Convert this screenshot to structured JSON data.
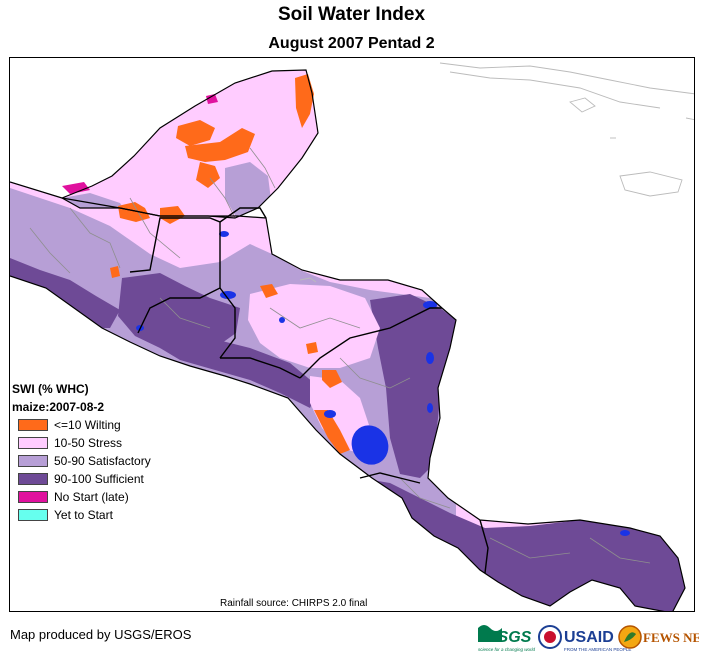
{
  "header": {
    "title": "Soil Water Index",
    "subtitle": "August 2007 Pentad 2"
  },
  "legend": {
    "title": "SWI (% WHC)",
    "subtitle": "maize:2007-08-2",
    "items": [
      {
        "label": "<=10 Wilting",
        "color": "#ff6a1a"
      },
      {
        "label": "10-50 Stress",
        "color": "#ffccff"
      },
      {
        "label": "50-90 Satisfactory",
        "color": "#b79fd6"
      },
      {
        "label": "90-100 Sufficient",
        "color": "#6e4a96"
      },
      {
        "label": "No Start (late)",
        "color": "#e0119e"
      },
      {
        "label": "Yet to Start",
        "color": "#66ffee"
      }
    ]
  },
  "map": {
    "water_color": "#1a33e6",
    "border_color": "#000000",
    "admin_color": "#8f8f8f"
  },
  "footer": {
    "rain_source": "Rainfall source: CHIRPS 2.0 final",
    "credit": "Map produced by USGS/EROS"
  },
  "logos": {
    "usgs": "USGS",
    "usgs_tagline": "science for a changing world",
    "usaid": "USAID",
    "usaid_tagline": "FROM THE AMERICAN PEOPLE",
    "fewsnet": "FEWS NET"
  }
}
